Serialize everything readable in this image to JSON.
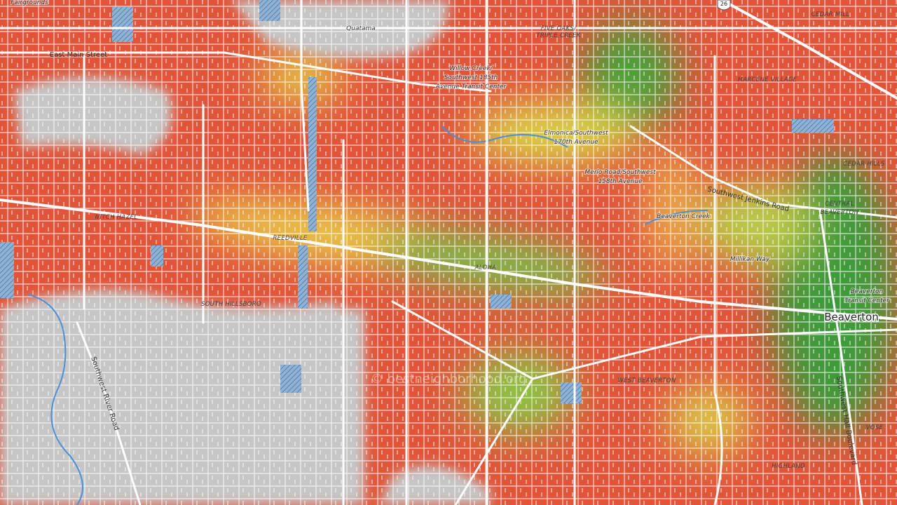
{
  "map": {
    "labels": [
      "Fairgrounds",
      "Quatama",
      "East Main Street",
      [
        "FIVE OAKS/",
        "TRIPLE CREEK"
      ],
      "CEDAR MILL",
      "MARCENE VILLAGE",
      [
        "Willow Creek/",
        "Southwest 185th",
        "Avenue Transit Center"
      ],
      [
        "Elmonica/Southwest",
        "170th Avenue"
      ],
      [
        "Merlo Road/Southwest",
        "158th Avenue"
      ],
      "Southwest Jenkins Road",
      "CEDAR HILLS",
      [
        "CENTRAL",
        "BEAVERTON"
      ],
      "Beaverton Creek",
      "WITCH HAZEL",
      "REEDVILLE",
      "Millikan Way",
      "ALOHA",
      [
        "Beaverton",
        "Transit Center"
      ],
      "Beaverton",
      "SOUTH HILLSBORO",
      "Southwest River Road",
      "WEST BEAVERTON",
      "Southwest Hall Boulevard",
      "VOSE",
      "HIGHLAND"
    ],
    "route_shield": "26",
    "watermark": "© bestneighborhood.org"
  }
}
